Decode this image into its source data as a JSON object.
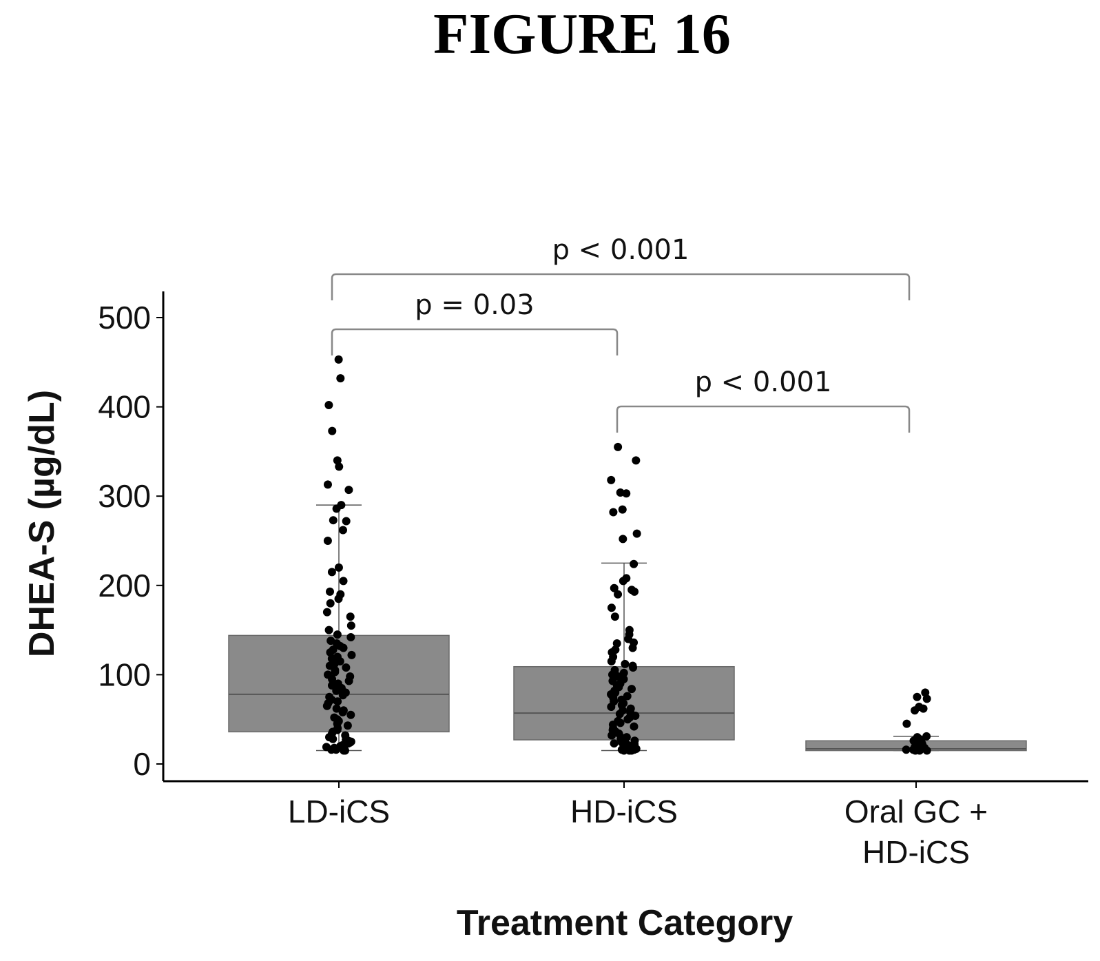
{
  "figure_title": "FIGURE 16",
  "chart_data": {
    "type": "box",
    "xlabel": "Treatment Category",
    "ylabel": "DHEA-S (µg/dL)",
    "ylim": [
      0,
      525
    ],
    "yticks": [
      0,
      100,
      200,
      300,
      400,
      500
    ],
    "grid": false,
    "categories": [
      {
        "label_lines": [
          "LD-iCS"
        ]
      },
      {
        "label_lines": [
          "HD-iCS"
        ]
      },
      {
        "label_lines": [
          "Oral GC +",
          "HD-iCS"
        ]
      }
    ],
    "boxes": [
      {
        "whisker_low": 15,
        "q1": 36,
        "median": 78,
        "q3": 144,
        "whisker_high": 290
      },
      {
        "whisker_low": 15,
        "q1": 27,
        "median": 57,
        "q3": 109,
        "whisker_high": 225
      },
      {
        "whisker_low": 15,
        "q1": 15,
        "median": 17,
        "q3": 26,
        "whisker_high": 31
      }
    ],
    "points": [
      [
        453,
        432,
        402,
        373,
        340,
        333,
        313,
        307,
        290,
        286,
        273,
        272,
        262,
        250,
        220,
        215,
        205,
        193,
        190,
        185,
        180,
        170,
        165,
        155,
        150,
        145,
        142,
        138,
        135,
        132,
        130,
        128,
        125,
        122,
        120,
        118,
        115,
        112,
        110,
        108,
        105,
        103,
        100,
        98,
        95,
        93,
        90,
        88,
        85,
        82,
        80,
        77,
        75,
        72,
        70,
        68,
        65,
        62,
        60,
        58,
        55,
        52,
        50,
        48,
        45,
        43,
        40,
        38,
        36,
        34,
        32,
        30,
        28,
        27,
        26,
        25,
        24,
        23,
        22,
        21,
        20,
        19,
        18,
        17,
        16,
        16,
        15,
        15
      ],
      [
        355,
        340,
        318,
        304,
        303,
        285,
        282,
        258,
        252,
        224,
        208,
        205,
        197,
        195,
        193,
        190,
        175,
        165,
        150,
        145,
        140,
        136,
        135,
        130,
        128,
        125,
        120,
        115,
        112,
        110,
        108,
        105,
        102,
        100,
        98,
        95,
        93,
        90,
        88,
        86,
        84,
        82,
        80,
        78,
        76,
        74,
        72,
        70,
        68,
        66,
        64,
        62,
        60,
        58,
        56,
        54,
        52,
        50,
        48,
        46,
        44,
        42,
        40,
        38,
        36,
        34,
        32,
        30,
        29,
        28,
        27,
        26,
        25,
        24,
        23,
        22,
        21,
        20,
        19,
        18,
        17,
        17,
        16,
        16,
        15,
        15,
        15
      ],
      [
        80,
        75,
        73,
        64,
        62,
        60,
        45,
        31,
        30,
        28,
        26,
        24,
        22,
        20,
        19,
        18,
        17,
        16,
        16,
        15,
        15,
        15
      ]
    ],
    "significance": [
      {
        "from": 0,
        "to": 2,
        "label": "p < 0.001"
      },
      {
        "from": 0,
        "to": 1,
        "label": "p = 0.03"
      },
      {
        "from": 1,
        "to": 2,
        "label": "p < 0.001"
      }
    ]
  }
}
